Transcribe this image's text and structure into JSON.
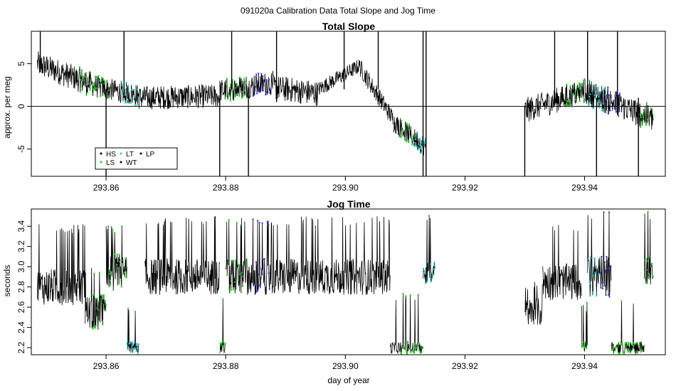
{
  "figure": {
    "suptitle": "091020a   Calibration Data Total Slope and Jog Time"
  },
  "chart_data": [
    {
      "type": "line",
      "title": "Total Slope",
      "xlabel": "",
      "ylabel": "approx. per meg",
      "xlim": [
        293.8475,
        293.9535
      ],
      "ylim": [
        -8.2,
        8.8
      ],
      "xticks": [
        293.86,
        293.88,
        293.9,
        293.92,
        293.94
      ],
      "xtick_labels": [
        "293.86",
        "293.88",
        "293.90",
        "293.92",
        "293.94"
      ],
      "yticks": [
        -5,
        0,
        5
      ],
      "ytick_labels": [
        "-5",
        "0",
        "5"
      ],
      "reference_line": 0,
      "legend": {
        "placement": "bottom-left",
        "entries": [
          {
            "label": "HS",
            "color": "#000000"
          },
          {
            "label": "LS",
            "color": "#22cc22"
          },
          {
            "label": "LT",
            "color": "#22cccc"
          },
          {
            "label": "WT",
            "color": "#000000"
          },
          {
            "label": "LP",
            "color": "#000000"
          }
        ]
      },
      "segments": [
        {
          "x0": 293.8485,
          "x1": 293.8575,
          "y0": 5.0,
          "y1": 2.6,
          "noise": 1.5,
          "colored": [
            {
              "x0": 293.8555,
              "x1": 293.8575,
              "color": "#22cc22"
            }
          ]
        },
        {
          "x0": 293.8575,
          "x1": 293.8655,
          "y0": 2.5,
          "y1": 1.2,
          "noise": 1.3,
          "colored": [
            {
              "x0": 293.8575,
              "x1": 293.8605,
              "color": "#22cc22"
            },
            {
              "x0": 293.8625,
              "x1": 293.8655,
              "color": "#22cccc"
            }
          ]
        },
        {
          "x0": 293.8655,
          "x1": 293.879,
          "y0": 1.0,
          "y1": 1.2,
          "noise": 1.4,
          "colored": []
        },
        {
          "x0": 293.879,
          "x1": 293.888,
          "y0": 1.8,
          "y1": 2.8,
          "noise": 1.4,
          "colored": [
            {
              "x0": 293.88,
              "x1": 293.8835,
              "color": "#22cc22"
            },
            {
              "x0": 293.8845,
              "x1": 293.8875,
              "color": "#3333cc"
            }
          ]
        },
        {
          "x0": 293.888,
          "x1": 293.8955,
          "y0": 2.2,
          "y1": 1.5,
          "noise": 1.5,
          "colored": []
        },
        {
          "x0": 293.8955,
          "x1": 293.9025,
          "y0": 2.0,
          "y1": 4.8,
          "noise": 0.9,
          "colored": []
        },
        {
          "x0": 293.9025,
          "x1": 293.908,
          "y0": 4.5,
          "y1": -1.5,
          "noise": 1.1,
          "colored": []
        },
        {
          "x0": 293.908,
          "x1": 293.9135,
          "y0": -1.8,
          "y1": -4.8,
          "noise": 1.2,
          "colored": [
            {
              "x0": 293.909,
              "x1": 293.9115,
              "color": "#22cc22"
            },
            {
              "x0": 293.9115,
              "x1": 293.9135,
              "color": "#22cccc"
            }
          ]
        },
        {
          "x0": 293.93,
          "x1": 293.94,
          "y0": -0.5,
          "y1": 1.8,
          "noise": 1.5,
          "colored": [
            {
              "x0": 293.9365,
              "x1": 293.94,
              "color": "#22cc22"
            }
          ]
        },
        {
          "x0": 293.94,
          "x1": 293.9515,
          "y0": 1.8,
          "y1": -1.5,
          "noise": 1.6,
          "colored": [
            {
              "x0": 293.9405,
              "x1": 293.9435,
              "color": "#22cccc"
            },
            {
              "x0": 293.9435,
              "x1": 293.946,
              "color": "#3333cc"
            },
            {
              "x0": 293.949,
              "x1": 293.9515,
              "color": "#22cc22"
            }
          ]
        }
      ],
      "spikes": [
        {
          "x": 293.849,
          "y0": 8.8,
          "y1": 4.0
        },
        {
          "x": 293.86,
          "y0": 2.0,
          "y1": -8.2
        },
        {
          "x": 293.863,
          "y0": 8.8,
          "y1": 1.0
        },
        {
          "x": 293.879,
          "y0": 1.0,
          "y1": -8.2
        },
        {
          "x": 293.881,
          "y0": 8.8,
          "y1": 2.0
        },
        {
          "x": 293.8838,
          "y0": 2.0,
          "y1": -8.2
        },
        {
          "x": 293.8885,
          "y0": 8.8,
          "y1": 0.5
        },
        {
          "x": 293.8998,
          "y0": 8.8,
          "y1": 2.0
        },
        {
          "x": 293.9055,
          "y0": 8.8,
          "y1": 2.0
        },
        {
          "x": 293.913,
          "y0": 8.8,
          "y1": -8.2
        },
        {
          "x": 293.9135,
          "y0": 8.8,
          "y1": -8.2
        },
        {
          "x": 293.93,
          "y0": 0.0,
          "y1": -8.2
        },
        {
          "x": 293.935,
          "y0": 8.8,
          "y1": 0.5
        },
        {
          "x": 293.9405,
          "y0": 8.8,
          "y1": 1.5
        },
        {
          "x": 293.942,
          "y0": 1.0,
          "y1": -8.2
        },
        {
          "x": 293.9455,
          "y0": 8.8,
          "y1": -1.0
        },
        {
          "x": 293.949,
          "y0": 1.0,
          "y1": -8.2
        }
      ]
    },
    {
      "type": "line",
      "title": "Jog Time",
      "xlabel": "day of year",
      "ylabel": "seconds",
      "xlim": [
        293.8475,
        293.9535
      ],
      "ylim": [
        2.13,
        3.57
      ],
      "xticks": [
        293.86,
        293.88,
        293.9,
        293.92,
        293.94
      ],
      "xtick_labels": [
        "293.86",
        "293.88",
        "293.90",
        "293.92",
        "293.94"
      ],
      "yticks": [
        2.2,
        2.4,
        2.6,
        2.8,
        3.0,
        3.2,
        3.4
      ],
      "ytick_labels": [
        "2.2",
        "2.4",
        "2.6",
        "2.8",
        "3.0",
        "3.2",
        "3.4"
      ],
      "segments": [
        {
          "x0": 293.8485,
          "x1": 293.8565,
          "base": 2.8,
          "noise": 0.18,
          "spike": 3.42,
          "colored": []
        },
        {
          "x0": 293.8565,
          "x1": 293.86,
          "base": 2.55,
          "noise": 0.18,
          "spike": 3.0,
          "colored": [
            {
              "x0": 293.8575,
              "x1": 293.86,
              "color": "#22cc22"
            }
          ]
        },
        {
          "x0": 293.86,
          "x1": 293.8635,
          "base": 2.95,
          "noise": 0.18,
          "spike": 3.42,
          "colored": [
            {
              "x0": 293.8605,
              "x1": 293.8635,
              "color": "#22cc22"
            }
          ]
        },
        {
          "x0": 293.8635,
          "x1": 293.8655,
          "base": 2.2,
          "noise": 0.06,
          "spike": 2.65,
          "colored": [
            {
              "x0": 293.8635,
              "x1": 293.8655,
              "color": "#22cccc"
            }
          ]
        },
        {
          "x0": 293.8665,
          "x1": 293.879,
          "base": 2.9,
          "noise": 0.18,
          "spike": 3.5,
          "colored": []
        },
        {
          "x0": 293.879,
          "x1": 293.88,
          "base": 2.2,
          "noise": 0.06,
          "spike": 2.7,
          "colored": [
            {
              "x0": 293.879,
              "x1": 293.88,
              "color": "#22cc22"
            }
          ]
        },
        {
          "x0": 293.88,
          "x1": 293.9075,
          "base": 2.9,
          "noise": 0.18,
          "spike": 3.5,
          "colored": [
            {
              "x0": 293.88,
              "x1": 293.8835,
              "color": "#22cc22"
            },
            {
              "x0": 293.8845,
              "x1": 293.8875,
              "color": "#3333cc"
            }
          ]
        },
        {
          "x0": 293.9075,
          "x1": 293.913,
          "base": 2.2,
          "noise": 0.06,
          "spike": 2.75,
          "colored": [
            {
              "x0": 293.909,
              "x1": 293.913,
              "color": "#22cc22"
            }
          ]
        },
        {
          "x0": 293.913,
          "x1": 293.915,
          "base": 2.95,
          "noise": 0.12,
          "spike": 3.55,
          "colored": [
            {
              "x0": 293.913,
              "x1": 293.915,
              "color": "#22cccc"
            }
          ]
        },
        {
          "x0": 293.93,
          "x1": 293.933,
          "base": 2.55,
          "noise": 0.14,
          "spike": 2.85,
          "colored": []
        },
        {
          "x0": 293.933,
          "x1": 293.9395,
          "base": 2.85,
          "noise": 0.18,
          "spike": 3.45,
          "colored": []
        },
        {
          "x0": 293.9395,
          "x1": 293.9405,
          "base": 2.2,
          "noise": 0.06,
          "spike": 2.65,
          "colored": [
            {
              "x0": 293.9395,
              "x1": 293.9405,
              "color": "#22cc22"
            }
          ]
        },
        {
          "x0": 293.9405,
          "x1": 293.9445,
          "base": 2.9,
          "noise": 0.2,
          "spike": 3.55,
          "colored": [
            {
              "x0": 293.9405,
              "x1": 293.9425,
              "color": "#22cccc"
            },
            {
              "x0": 293.9425,
              "x1": 293.9445,
              "color": "#3333cc"
            }
          ]
        },
        {
          "x0": 293.9445,
          "x1": 293.95,
          "base": 2.2,
          "noise": 0.06,
          "spike": 2.7,
          "colored": [
            {
              "x0": 293.9445,
              "x1": 293.95,
              "color": "#22cc22"
            }
          ]
        },
        {
          "x0": 293.95,
          "x1": 293.9515,
          "base": 2.95,
          "noise": 0.15,
          "spike": 3.55,
          "colored": [
            {
              "x0": 293.95,
              "x1": 293.9515,
              "color": "#22cc22"
            }
          ]
        }
      ]
    }
  ]
}
